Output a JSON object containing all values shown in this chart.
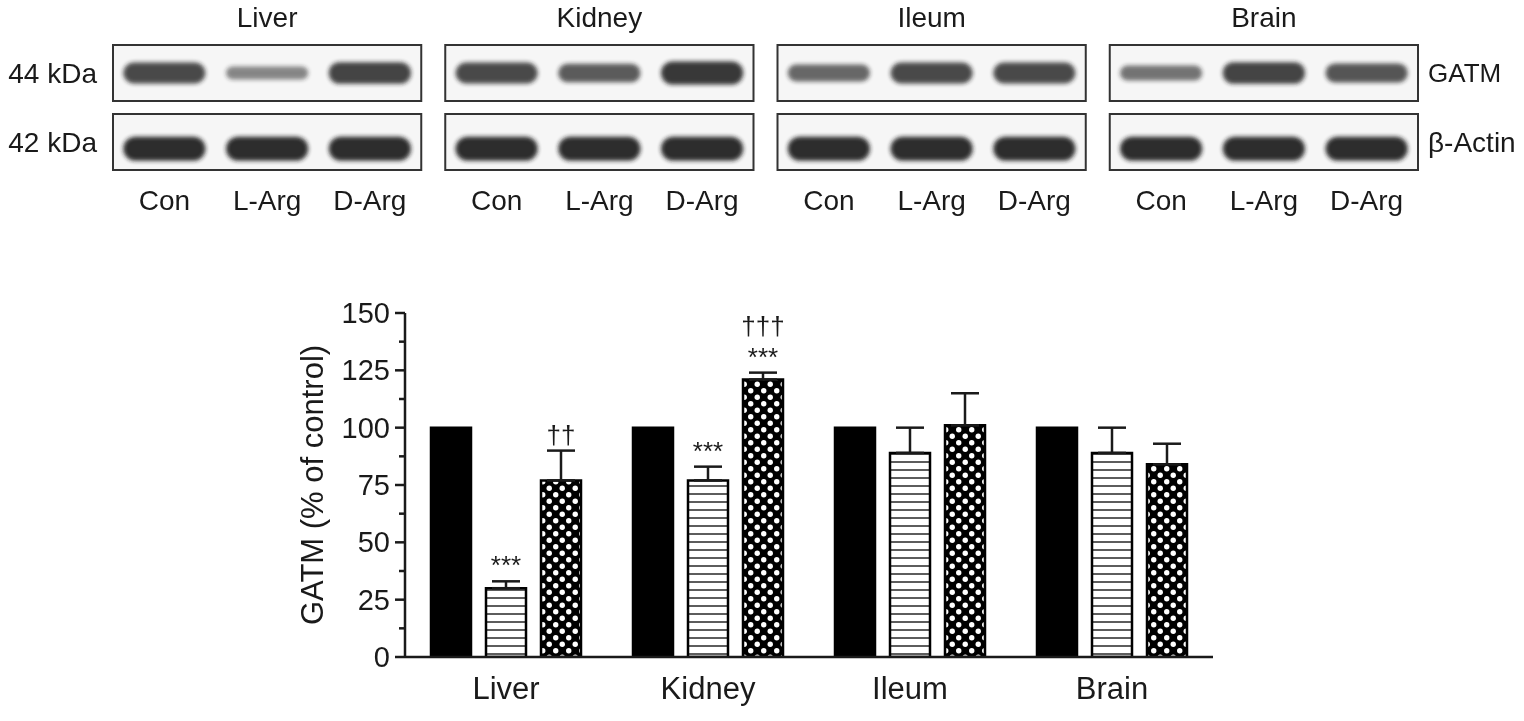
{
  "chart_data": [
    {
      "type": "other",
      "annotations": [
        "Liver",
        "Kidney",
        "Ileum",
        "Brain"
      ],
      "categories": [
        "Con",
        "L-Arg",
        "D-Arg",
        "Con",
        "L-Arg",
        "D-Arg",
        "Con",
        "L-Arg",
        "D-Arg",
        "Con",
        "L-Arg",
        "D-Arg"
      ],
      "y_categories": [
        "44 kDa",
        "42 kDa"
      ],
      "y2_categories": [
        "GATM",
        "β-Actin"
      ]
    },
    {
      "type": "bar",
      "categories": [
        "Liver",
        "Kidney",
        "Ileum",
        "Brain"
      ],
      "ylabel": "GATM (% of control)",
      "ylim": [
        0,
        150
      ],
      "yticks": [
        0,
        {
          "value": 12.5,
          "label": null
        },
        25,
        {
          "value": 37.5,
          "label": null
        },
        50,
        {
          "value": 62.5,
          "label": null
        },
        75,
        {
          "value": 87.5,
          "label": null
        },
        100,
        {
          "value": 112.5,
          "label": null
        },
        125,
        {
          "value": 137.5,
          "label": null
        },
        150
      ],
      "series": [
        {
          "color": "#000000",
          "values": [
            100,
            100,
            100,
            100
          ]
        },
        {
          "color": "#000000",
          "values": [
            30,
            77,
            89,
            89
          ],
          "errors": [
            [
              30,
              33
            ],
            [
              77,
              83
            ],
            [
              89,
              100
            ],
            [
              89,
              100
            ]
          ]
        },
        {
          "color": "#000000",
          "values": [
            77,
            121,
            101,
            84
          ],
          "errors": [
            [
              77,
              90
            ],
            [
              121,
              124
            ],
            [
              101,
              115
            ],
            [
              84,
              93
            ]
          ]
        }
      ],
      "annotations": [
        {
          "text": "***",
          "x": "Liver",
          "y": 30
        },
        "††",
        {
          "text": "***",
          "x": "Kidney",
          "y": 77
        },
        "***",
        "†††"
      ]
    }
  ]
}
